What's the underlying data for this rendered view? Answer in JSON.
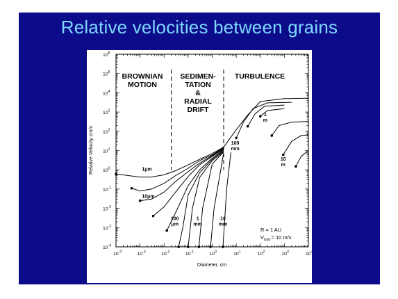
{
  "slide": {
    "title": "Relative velocities between grains",
    "background": "#0c0c8a",
    "title_color": "#7fd8ff"
  },
  "figure": {
    "regions": [
      {
        "lines": [
          "BROWNIAN",
          "MOTION"
        ]
      },
      {
        "lines": [
          "SEDIMEN-",
          "TATION",
          "&",
          "RADIAL",
          "DRIFT"
        ]
      },
      {
        "lines": [
          "TURBULENCE"
        ]
      }
    ],
    "notes": {
      "radius": "R =  1 AU",
      "vturb_v": "V",
      "vturb_sub": "turb",
      "vturb_rest": "= 10 m/s"
    }
  },
  "chart_data": {
    "type": "line",
    "xlabel": "Diameter,  cm",
    "ylabel": "Relative Velocity  cm/s",
    "x_scale": "log",
    "y_scale": "log",
    "xlim": [
      0.0001,
      10000
    ],
    "ylim": [
      0.0001,
      1000000
    ],
    "x_ticks": [
      {
        "base": "10",
        "exp": "-4"
      },
      {
        "base": "10",
        "exp": "-3"
      },
      {
        "base": "10",
        "exp": "-2"
      },
      {
        "base": "10",
        "exp": "-1"
      },
      {
        "base": "10",
        "exp": "0"
      },
      {
        "base": "10",
        "exp": "1"
      },
      {
        "base": "10",
        "exp": "2"
      },
      {
        "base": "10",
        "exp": "3"
      },
      {
        "base": "10",
        "exp": "4"
      }
    ],
    "y_ticks": [
      {
        "base": "10",
        "exp": "-4"
      },
      {
        "base": "10",
        "exp": "-3"
      },
      {
        "base": "10",
        "exp": "-2"
      },
      {
        "base": "10",
        "exp": "-1"
      },
      {
        "base": "10",
        "exp": "0"
      },
      {
        "base": "10",
        "exp": "1"
      },
      {
        "base": "10",
        "exp": "2"
      },
      {
        "base": "10",
        "exp": "3"
      },
      {
        "base": "10",
        "exp": "4"
      },
      {
        "base": "10",
        "exp": "5"
      },
      {
        "base": "10",
        "exp": "6"
      }
    ],
    "region_boundaries": [
      0.02,
      3
    ],
    "curve_labels": [
      {
        "text": "1μm",
        "x": 0.0012,
        "y": 0.9
      },
      {
        "text": "10μm",
        "x": 0.0012,
        "y": 0.035
      },
      {
        "lines": [
          "100",
          "μm"
        ],
        "x": 0.028,
        "y": 0.0025
      },
      {
        "lines": [
          "1",
          "mm"
        ],
        "x": 0.25,
        "y": 0.0025
      },
      {
        "lines": [
          "10",
          "mm"
        ],
        "x": 2.8,
        "y": 0.0025
      },
      {
        "lines": [
          "100",
          "mm"
        ],
        "x": 9,
        "y": 20
      },
      {
        "lines": [
          "1",
          "m"
        ],
        "x": 160,
        "y": 600
      },
      {
        "lines": [
          "10",
          "m"
        ],
        "x": 900,
        "y": 3
      }
    ],
    "series": [
      {
        "x": [
          0.0001,
          0.001,
          0.003,
          0.01,
          0.03,
          0.1,
          0.3,
          1,
          3,
          10,
          30,
          100,
          1000,
          10000
        ],
        "y": [
          0.6,
          0.42,
          0.42,
          0.55,
          0.9,
          1.8,
          3.5,
          7,
          15,
          120,
          700,
          3500,
          5000,
          5200
        ]
      },
      {
        "x": [
          0.00045,
          0.001,
          0.003,
          0.01,
          0.03,
          0.1,
          0.3,
          1,
          3
        ],
        "y": [
          0.11,
          0.08,
          0.1,
          0.2,
          0.5,
          1.2,
          3,
          6,
          14
        ]
      },
      {
        "x": [
          0.001,
          0.003,
          0.01,
          0.03,
          0.1,
          0.3,
          1,
          3
        ],
        "y": [
          0.025,
          0.03,
          0.07,
          0.25,
          0.8,
          2.2,
          5.5,
          13
        ]
      },
      {
        "x": [
          0.0035,
          0.01,
          0.03,
          0.1,
          0.3,
          1,
          3
        ],
        "y": [
          0.004,
          0.012,
          0.07,
          0.45,
          1.8,
          5,
          12
        ]
      },
      {
        "x": [
          0.013,
          0.03,
          0.1,
          0.3,
          1,
          3
        ],
        "y": [
          0.0007,
          0.006,
          0.15,
          1.0,
          4,
          11
        ]
      },
      {
        "x": [
          0.04,
          0.06,
          0.1,
          0.3,
          1,
          3
        ],
        "y": [
          0.0001,
          0.001,
          0.05,
          0.7,
          3.5,
          10
        ]
      },
      {
        "x": [
          0.1,
          0.15,
          0.3,
          1,
          3
        ],
        "y": [
          0.0001,
          0.01,
          0.4,
          3,
          9
        ]
      },
      {
        "x": [
          0.28,
          0.4,
          1,
          3
        ],
        "y": [
          0.0001,
          0.01,
          2,
          8.5
        ]
      },
      {
        "x": [
          0.85,
          1.2,
          3
        ],
        "y": [
          0.0001,
          0.01,
          7.5
        ]
      },
      {
        "x": [
          2.8,
          4,
          6
        ],
        "y": [
          0.0001,
          0.1,
          8
        ]
      },
      {
        "x": [
          10,
          20,
          50,
          200,
          2000
        ],
        "y": [
          45,
          300,
          1500,
          3000,
          3200
        ]
      },
      {
        "x": [
          30,
          60,
          150,
          1000
        ],
        "y": [
          180,
          800,
          2000,
          2300
        ]
      },
      {
        "x": [
          100,
          200,
          1000
        ],
        "y": [
          600,
          1200,
          1500
        ]
      },
      {
        "x": [
          300,
          600,
          2000,
          10000
        ],
        "y": [
          60,
          200,
          300,
          320
        ]
      },
      {
        "x": [
          900,
          2000,
          5000,
          10000
        ],
        "y": [
          6,
          30,
          60,
          65
        ]
      },
      {
        "x": [
          3000,
          5000,
          10000
        ],
        "y": [
          1.5,
          5,
          10
        ]
      }
    ]
  }
}
